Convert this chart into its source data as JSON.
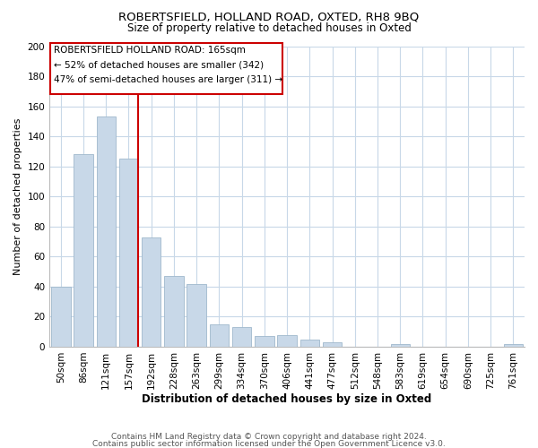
{
  "title": "ROBERTSFIELD, HOLLAND ROAD, OXTED, RH8 9BQ",
  "subtitle": "Size of property relative to detached houses in Oxted",
  "xlabel": "Distribution of detached houses by size in Oxted",
  "ylabel": "Number of detached properties",
  "bar_labels": [
    "50sqm",
    "86sqm",
    "121sqm",
    "157sqm",
    "192sqm",
    "228sqm",
    "263sqm",
    "299sqm",
    "334sqm",
    "370sqm",
    "406sqm",
    "441sqm",
    "477sqm",
    "512sqm",
    "548sqm",
    "583sqm",
    "619sqm",
    "654sqm",
    "690sqm",
    "725sqm",
    "761sqm"
  ],
  "bar_values": [
    40,
    128,
    153,
    125,
    73,
    47,
    42,
    15,
    13,
    7,
    8,
    5,
    3,
    0,
    0,
    2,
    0,
    0,
    0,
    0,
    2
  ],
  "bar_color": "#c8d8e8",
  "bar_edge_color": "#a0b8cc",
  "vline_index": 3,
  "vline_color": "#cc0000",
  "annotation_line1": "ROBERTSFIELD HOLLAND ROAD: 165sqm",
  "annotation_line2": "← 52% of detached houses are smaller (342)",
  "annotation_line3": "47% of semi-detached houses are larger (311) →",
  "ylim": [
    0,
    200
  ],
  "yticks": [
    0,
    20,
    40,
    60,
    80,
    100,
    120,
    140,
    160,
    180,
    200
  ],
  "footer_line1": "Contains HM Land Registry data © Crown copyright and database right 2024.",
  "footer_line2": "Contains public sector information licensed under the Open Government Licence v3.0.",
  "background_color": "#ffffff",
  "grid_color": "#c8d8e8",
  "title_fontsize": 9.5,
  "subtitle_fontsize": 8.5,
  "xlabel_fontsize": 8.5,
  "ylabel_fontsize": 8.0,
  "tick_fontsize": 7.5,
  "footer_fontsize": 6.5,
  "annotation_fontsize": 7.5
}
